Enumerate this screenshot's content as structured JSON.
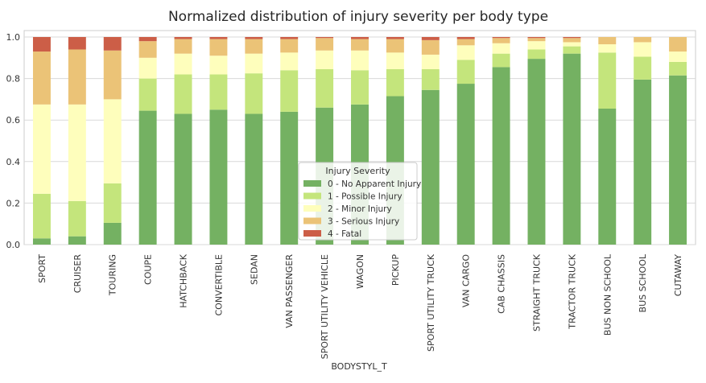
{
  "chart_data": {
    "type": "bar",
    "stacked": true,
    "title": "Normalized distribution of injury severity per body type",
    "xlabel": "BODYSTYL_T",
    "ylabel": "",
    "ylim": [
      0,
      1.0
    ],
    "yticks": [
      "0.0",
      "0.2",
      "0.4",
      "0.6",
      "0.8",
      "1.0"
    ],
    "grid": true,
    "legend": {
      "title": "Injury Severity",
      "placement": "lower-center"
    },
    "categories": [
      "SPORT",
      "CRUISER",
      "TOURING",
      "COUPE",
      "HATCHBACK",
      "CONVERTIBLE",
      "SEDAN",
      "VAN PASSENGER",
      "SPORT UTILITY VEHICLE",
      "WAGON",
      "PICKUP",
      "SPORT UTILITY TRUCK",
      "VAN CARGO",
      "CAB CHASSIS",
      "STRAIGHT TRUCK",
      "TRACTOR TRUCK",
      "BUS NON SCHOOL",
      "BUS SCHOOL",
      "CUTAWAY"
    ],
    "series": [
      {
        "name": "0 - No Apparent Injury",
        "color": "#74b162",
        "values": [
          0.03,
          0.04,
          0.105,
          0.645,
          0.63,
          0.65,
          0.63,
          0.64,
          0.66,
          0.675,
          0.715,
          0.745,
          0.775,
          0.855,
          0.895,
          0.92,
          0.655,
          0.795,
          0.815
        ]
      },
      {
        "name": "1 - Possible Injury",
        "color": "#c4e57c",
        "values": [
          0.215,
          0.17,
          0.19,
          0.155,
          0.19,
          0.17,
          0.195,
          0.2,
          0.185,
          0.165,
          0.13,
          0.1,
          0.115,
          0.065,
          0.045,
          0.035,
          0.27,
          0.11,
          0.065
        ]
      },
      {
        "name": "2 - Minor Injury",
        "color": "#fefebc",
        "values": [
          0.43,
          0.465,
          0.405,
          0.1,
          0.1,
          0.09,
          0.095,
          0.085,
          0.09,
          0.095,
          0.08,
          0.07,
          0.07,
          0.05,
          0.04,
          0.02,
          0.04,
          0.07,
          0.05
        ]
      },
      {
        "name": "3 - Serious Injury",
        "color": "#ebc377",
        "values": [
          0.255,
          0.265,
          0.235,
          0.08,
          0.07,
          0.08,
          0.07,
          0.065,
          0.06,
          0.055,
          0.065,
          0.07,
          0.03,
          0.025,
          0.015,
          0.02,
          0.035,
          0.025,
          0.07
        ]
      },
      {
        "name": "4 - Fatal",
        "color": "#cc5e47",
        "values": [
          0.07,
          0.06,
          0.065,
          0.02,
          0.01,
          0.01,
          0.01,
          0.01,
          0.005,
          0.01,
          0.01,
          0.015,
          0.01,
          0.005,
          0.005,
          0.005,
          0.0,
          0.0,
          0.0
        ]
      }
    ]
  }
}
